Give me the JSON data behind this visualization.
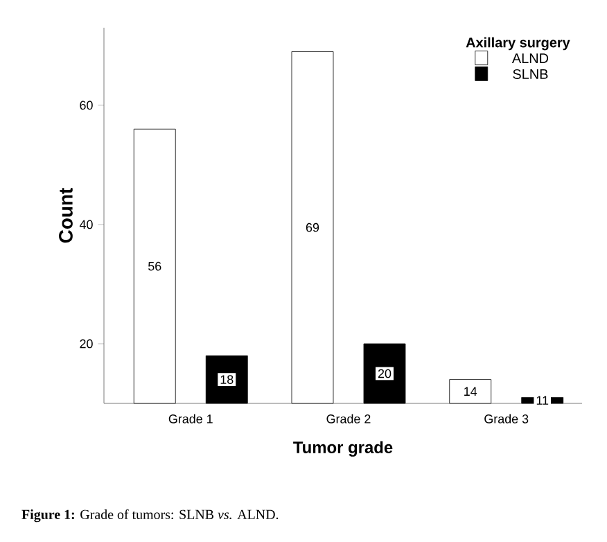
{
  "chart_data": {
    "type": "bar",
    "xlabel": "Tumor grade",
    "ylabel": "Count",
    "legend_title": "Axillary surgery",
    "legend": "top right",
    "categories": [
      "Grade 1",
      "Grade 2",
      "Grade 3"
    ],
    "series": [
      {
        "name": "ALND",
        "color": "#ffffff",
        "values": [
          56,
          69,
          14
        ]
      },
      {
        "name": "SLNB",
        "color": "#000000",
        "values": [
          18,
          20,
          11
        ]
      }
    ],
    "ylim": [
      10,
      73
    ],
    "yticks": [
      20,
      40,
      60
    ],
    "data_labels": true,
    "grid": false,
    "annotations": [
      "**Figure 1:** Grade of tumors: SLNB *vs.* ALND."
    ]
  }
}
